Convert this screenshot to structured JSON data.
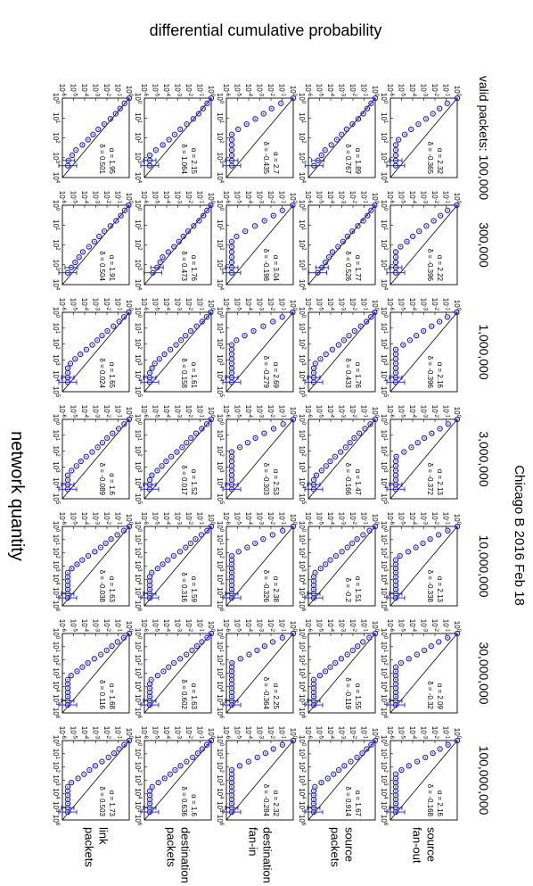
{
  "chart_data": {
    "type": "scatter",
    "title": "Chicago B 2016 Feb 18",
    "xlabel": "network quantity",
    "ylabel": "differential cumulative probability",
    "x_scale": "log",
    "y_scale": "log",
    "ylim": [
      1e-06,
      1
    ],
    "columns": [
      {
        "label": "valid packets: 100,000",
        "xmax_exp": 4
      },
      {
        "label": "300,000",
        "xmax_exp": 4
      },
      {
        "label": "1,000,000",
        "xmax_exp": 5
      },
      {
        "label": "3,000,000",
        "xmax_exp": 5
      },
      {
        "label": "10,000,000",
        "xmax_exp": 6
      },
      {
        "label": "30,000,000",
        "xmax_exp": 6
      },
      {
        "label": "100,000,000",
        "xmax_exp": 6
      }
    ],
    "rows": [
      {
        "label1": "source",
        "label2": "fan-out",
        "alpha": [
          "2.32",
          "2.22",
          "2.16",
          "2.13",
          "2.13",
          "2.09",
          "2.16"
        ],
        "delta": [
          "-0.365",
          "-0.396",
          "-0.396",
          "-0.372",
          "-0.338",
          "-0.32",
          "-0.168"
        ]
      },
      {
        "label1": "source",
        "label2": "packets",
        "alpha": [
          "1.89",
          "1.77",
          "1.76",
          "1.47",
          "1.51",
          "1.55",
          "1.67"
        ],
        "delta": [
          "0.767",
          "0.526",
          "0.433",
          "-0.166",
          "-0.2",
          "-0.119",
          "0.914"
        ]
      },
      {
        "label1": "destination",
        "label2": "fan-in",
        "alpha": [
          "2.7",
          "3.04",
          "2.69",
          "2.53",
          "2.38",
          "2.25",
          "2.32"
        ],
        "delta": [
          "-0.435",
          "-0.198",
          "-0.279",
          "-0.303",
          "-0.326",
          "-0.364",
          "-0.284"
        ]
      },
      {
        "label1": "destination",
        "label2": "packets",
        "alpha": [
          "2.15",
          "1.76",
          "1.61",
          "1.52",
          "1.59",
          "1.63",
          "1.6"
        ],
        "delta": [
          "1.064",
          "0.473",
          "0.158",
          "0.017",
          "0.316",
          "0.602",
          "0.636"
        ]
      },
      {
        "label1": "link",
        "label2": "packets",
        "alpha": [
          "1.95",
          "1.91",
          "1.65",
          "1.6",
          "1.63",
          "1.68",
          "1.73"
        ],
        "delta": [
          "0.501",
          "0.504",
          "0.024",
          "-0.089",
          "-0.038",
          "0.116",
          "0.503"
        ]
      }
    ],
    "tick_base": "10",
    "alpha_symbol": "α =",
    "delta_symbol": "δ ="
  }
}
